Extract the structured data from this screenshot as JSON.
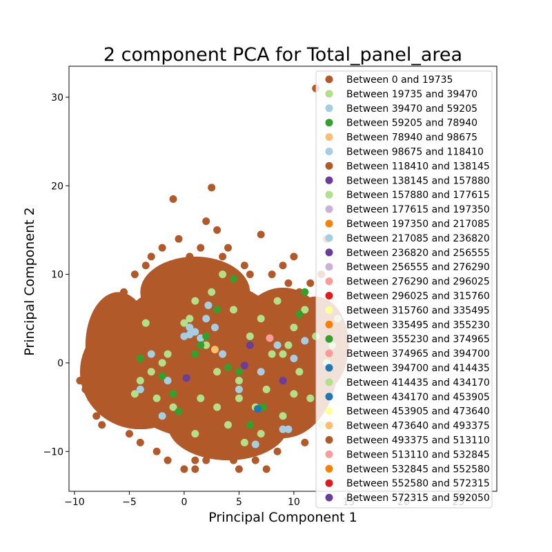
{
  "chart_data": {
    "type": "scatter",
    "title": "2 component PCA for Total_panel_area",
    "xlabel": "Principal Component 1",
    "ylabel": "Principal Component 2",
    "xlim": [
      -10.5,
      28.5
    ],
    "ylim": [
      -14.5,
      33.5
    ],
    "xticks": [
      -10,
      -5,
      0,
      5,
      10,
      15,
      20,
      25
    ],
    "yticks": [
      -10,
      0,
      10,
      20,
      30
    ],
    "grid": false,
    "legend_position": "upper right",
    "series": [
      {
        "name": "Between 0 and 19735",
        "color": "#b15928",
        "points": [
          [
            -9.5,
            -2
          ],
          [
            -9,
            -3
          ],
          [
            -8.5,
            -4
          ],
          [
            -8,
            -6
          ],
          [
            -7.5,
            -7
          ],
          [
            -7,
            1
          ],
          [
            -6.5,
            3
          ],
          [
            -6,
            6
          ],
          [
            -5.5,
            8
          ],
          [
            -5,
            -8
          ],
          [
            -4.5,
            10
          ],
          [
            -4,
            -9
          ],
          [
            -3.5,
            11
          ],
          [
            -3,
            12
          ],
          [
            -2.5,
            -10
          ],
          [
            -2,
            13
          ],
          [
            -1.5,
            -11
          ],
          [
            -1,
            18.5
          ],
          [
            -0.5,
            14
          ],
          [
            0,
            -12
          ],
          [
            0.5,
            12
          ],
          [
            1,
            -11
          ],
          [
            1.5,
            13
          ],
          [
            2,
            16
          ],
          [
            2.5,
            19.8
          ],
          [
            3,
            15
          ],
          [
            3.5,
            12
          ],
          [
            4,
            13
          ],
          [
            4.5,
            -11
          ],
          [
            5,
            -12
          ],
          [
            5.5,
            11
          ],
          [
            6,
            10
          ],
          [
            6.5,
            -11
          ],
          [
            7,
            14.5
          ],
          [
            7.5,
            -12
          ],
          [
            8,
            10
          ],
          [
            8.5,
            -10
          ],
          [
            9,
            11
          ],
          [
            9.5,
            9
          ],
          [
            10,
            12
          ],
          [
            10.5,
            8
          ],
          [
            11,
            -9
          ],
          [
            11.5,
            9
          ],
          [
            12,
            31
          ],
          [
            12.5,
            10
          ],
          [
            13,
            14
          ],
          [
            1,
            -12
          ],
          [
            2,
            -11
          ],
          [
            3,
            -10
          ],
          [
            4,
            -9
          ],
          [
            5,
            -8
          ],
          [
            6,
            -7
          ],
          [
            7,
            -6
          ],
          [
            8,
            -5
          ],
          [
            -2,
            -5
          ],
          [
            -1,
            -3
          ],
          [
            0,
            0
          ],
          [
            1,
            2
          ],
          [
            2,
            4
          ],
          [
            3,
            6
          ],
          [
            4,
            8
          ],
          [
            5,
            5
          ],
          [
            6,
            3
          ],
          [
            7,
            1
          ],
          [
            8,
            -1
          ],
          [
            9,
            -3
          ],
          [
            10,
            -5
          ],
          [
            -3,
            0
          ],
          [
            -4,
            2
          ],
          [
            -5,
            4
          ],
          [
            -6,
            -2
          ],
          [
            -7,
            -4
          ],
          [
            -3,
            5
          ],
          [
            -2,
            7
          ],
          [
            -1,
            9
          ],
          [
            0,
            6
          ],
          [
            1,
            4
          ],
          [
            2,
            -2
          ],
          [
            3,
            -4
          ],
          [
            4,
            -6
          ],
          [
            5,
            -3
          ],
          [
            6,
            -1
          ],
          [
            7,
            3
          ],
          [
            8,
            5
          ],
          [
            9,
            7
          ],
          [
            10,
            3
          ],
          [
            11,
            1
          ],
          [
            12,
            -1
          ],
          [
            13,
            -3
          ],
          [
            13,
            5
          ],
          [
            12,
            6
          ]
        ]
      },
      {
        "name": "Between 19735 and 39470",
        "color": "#b2df8a",
        "points": [
          [
            -4.5,
            -3.5
          ],
          [
            -4,
            -2
          ],
          [
            -3,
            -1
          ],
          [
            -2.5,
            -4
          ],
          [
            -2,
            0
          ],
          [
            -1.5,
            1
          ],
          [
            -1,
            -5
          ],
          [
            0,
            4.5
          ],
          [
            0.5,
            5
          ],
          [
            1,
            7
          ],
          [
            1.5,
            -4
          ],
          [
            2,
            2
          ],
          [
            2.5,
            8
          ],
          [
            3,
            -1
          ],
          [
            3.5,
            10
          ],
          [
            4,
            -7
          ],
          [
            4.5,
            6
          ],
          [
            5,
            -2
          ],
          [
            5.5,
            -9
          ],
          [
            6,
            3
          ],
          [
            6.5,
            -5
          ],
          [
            7,
            5
          ],
          [
            7.5,
            -3
          ],
          [
            8,
            1
          ],
          [
            8.5,
            7
          ],
          [
            9,
            -6
          ],
          [
            9.5,
            2
          ],
          [
            10,
            4
          ],
          [
            10.5,
            -1
          ],
          [
            11,
            6
          ],
          [
            11.5,
            -4
          ],
          [
            12,
            3
          ],
          [
            12.5,
            -7
          ],
          [
            13,
            0
          ],
          [
            13.5,
            2
          ],
          [
            14,
            5
          ],
          [
            -3.5,
            4.5
          ],
          [
            1,
            -8
          ],
          [
            3,
            -5
          ],
          [
            7,
            -8
          ],
          [
            10,
            -3.5
          ]
        ]
      },
      {
        "name": "Between 39470 and 59205",
        "color": "#a6cee3",
        "points": [
          [
            -4,
            -3
          ],
          [
            -3,
            1
          ],
          [
            -2,
            -6
          ],
          [
            -1.5,
            -2
          ],
          [
            0,
            3
          ],
          [
            0.5,
            4
          ],
          [
            1,
            3.5
          ],
          [
            1.5,
            2.8
          ],
          [
            2,
            5
          ],
          [
            2.2,
            6.5
          ],
          [
            2.8,
            4
          ],
          [
            3.5,
            1
          ],
          [
            5,
            -3
          ],
          [
            6.5,
            -9.2
          ],
          [
            7,
            -1
          ],
          [
            8.5,
            2
          ],
          [
            9.5,
            -7.5
          ],
          [
            10,
            0.5
          ],
          [
            11,
            2.5
          ]
        ]
      },
      {
        "name": "Between 59205 and 78940",
        "color": "#33a02c",
        "points": [
          [
            -4,
            0.5
          ],
          [
            -2,
            -1.5
          ],
          [
            -1,
            -3.5
          ],
          [
            -0.5,
            -5.5
          ],
          [
            1,
            1
          ],
          [
            1.5,
            2
          ],
          [
            2,
            3
          ],
          [
            3,
            6
          ],
          [
            4,
            -0.5
          ],
          [
            4.5,
            9.5
          ],
          [
            5,
            -1
          ],
          [
            6,
            -7
          ],
          [
            7,
            -5
          ],
          [
            10.5,
            5.5
          ],
          [
            11,
            8
          ]
        ]
      },
      {
        "name": "Between 78940 and 98675",
        "color": "#fdbf6f",
        "points": [
          [
            2.8,
            1.5
          ]
        ]
      },
      {
        "name": "Between 98675 and 118410",
        "color": "#a6cee3",
        "points": [
          [
            0.5,
            3.2
          ],
          [
            9,
            -7.5
          ]
        ]
      },
      {
        "name": "Between 118410 and 138145",
        "color": "#b15928",
        "points": [
          [
            3,
            -9
          ],
          [
            4,
            -8
          ]
        ]
      },
      {
        "name": "Between 138145 and 157880",
        "color": "#6a3d9a",
        "points": [
          [
            0.2,
            -1.7
          ],
          [
            5.5,
            -0.3
          ],
          [
            6,
            2
          ],
          [
            9,
            -2
          ]
        ]
      },
      {
        "name": "Between 157880 and 177615",
        "color": "#b2df8a",
        "points": [
          [
            5,
            -4
          ],
          [
            9,
            1
          ]
        ]
      },
      {
        "name": "Between 177615 and 197350",
        "color": "#cab2d6",
        "points": []
      },
      {
        "name": "Between 197350 and 217085",
        "color": "#ff7f00",
        "points": []
      },
      {
        "name": "Between 217085 and 236820",
        "color": "#a6cee3",
        "points": []
      },
      {
        "name": "Between 236820 and 256555",
        "color": "#6a3d9a",
        "points": []
      },
      {
        "name": "Between 256555 and 276290",
        "color": "#cab2d6",
        "points": []
      },
      {
        "name": "Between 276290 and 296025",
        "color": "#fb9a99",
        "points": [
          [
            7.8,
            2.8
          ]
        ]
      },
      {
        "name": "Between 296025 and 315760",
        "color": "#e31a1c",
        "points": []
      },
      {
        "name": "Between 315760 and 335495",
        "color": "#ffff99",
        "points": []
      },
      {
        "name": "Between 335495 and 355230",
        "color": "#ff7f00",
        "points": []
      },
      {
        "name": "Between 355230 and 374965",
        "color": "#33a02c",
        "points": [
          [
            7.2,
            -5
          ]
        ]
      },
      {
        "name": "Between 374965 and 394700",
        "color": "#fb9a99",
        "points": []
      },
      {
        "name": "Between 394700 and 414435",
        "color": "#1f78b4",
        "points": [
          [
            6.7,
            -5.2
          ]
        ]
      },
      {
        "name": "Between 414435 and 434170",
        "color": "#b2df8a",
        "points": []
      },
      {
        "name": "Between 434170 and 453905",
        "color": "#1f78b4",
        "points": []
      },
      {
        "name": "Between 453905 and 473640",
        "color": "#ffff99",
        "points": []
      },
      {
        "name": "Between 473640 and 493375",
        "color": "#fdbf6f",
        "points": []
      },
      {
        "name": "Between 493375 and 513110",
        "color": "#b15928",
        "points": []
      },
      {
        "name": "Between 513110 and 532845",
        "color": "#fb9a99",
        "points": []
      },
      {
        "name": "Between 532845 and 552580",
        "color": "#ff7f00",
        "points": []
      },
      {
        "name": "Between 552580 and 572315",
        "color": "#e31a1c",
        "points": []
      },
      {
        "name": "Between 572315 and 592050",
        "color": "#6a3d9a",
        "points": []
      }
    ]
  }
}
